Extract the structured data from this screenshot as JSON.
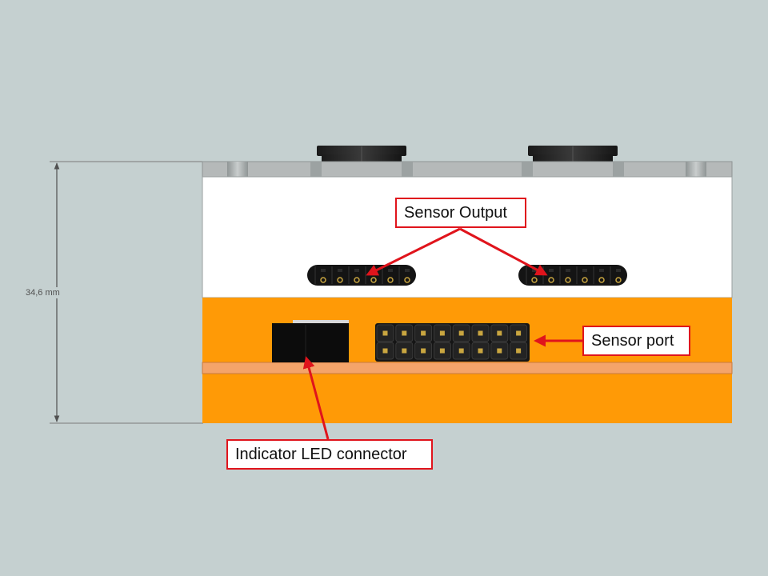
{
  "diagram": {
    "dimension_label": "34,6 mm",
    "callouts": {
      "sensor_output": "Sensor Output",
      "sensor_port": "Sensor port",
      "indicator_led": "Indicator LED connector"
    }
  },
  "colors": {
    "background": "#c5d0d0",
    "enclosure_orange": "#ff9a06",
    "pcb_strip": "#f4a46a",
    "top_cover": "#ffffff",
    "rail_gray": "#b5b9b9",
    "connector_black": "#141414",
    "callout_red": "#e0141c",
    "pin_gold": "#c9a640"
  }
}
